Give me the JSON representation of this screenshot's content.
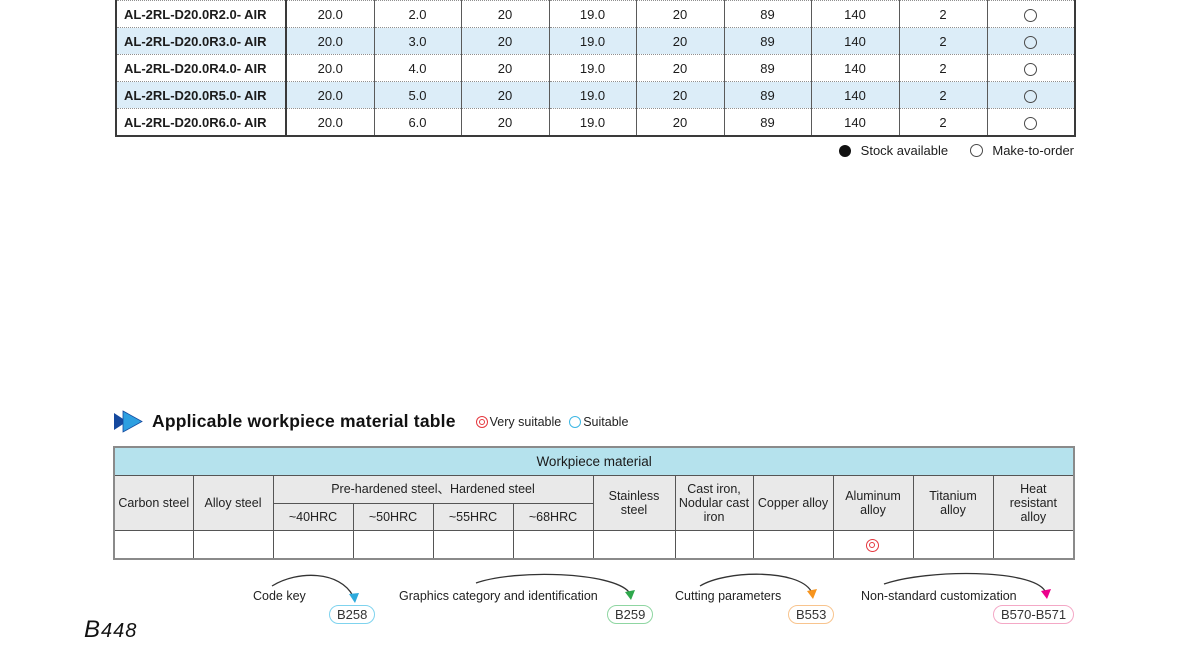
{
  "page_number": "B448",
  "size_table": {
    "rows": [
      {
        "code": "AL-2RL-D20.0R2.0- AIR",
        "values": [
          "20.0",
          "2.0",
          "20",
          "19.0",
          "20",
          "89",
          "140",
          "2"
        ],
        "availability": "make-to-order"
      },
      {
        "code": "AL-2RL-D20.0R3.0- AIR",
        "values": [
          "20.0",
          "3.0",
          "20",
          "19.0",
          "20",
          "89",
          "140",
          "2"
        ],
        "availability": "make-to-order"
      },
      {
        "code": "AL-2RL-D20.0R4.0- AIR",
        "values": [
          "20.0",
          "4.0",
          "20",
          "19.0",
          "20",
          "89",
          "140",
          "2"
        ],
        "availability": "make-to-order"
      },
      {
        "code": "AL-2RL-D20.0R5.0- AIR",
        "values": [
          "20.0",
          "5.0",
          "20",
          "19.0",
          "20",
          "89",
          "140",
          "2"
        ],
        "availability": "make-to-order"
      },
      {
        "code": "AL-2RL-D20.0R6.0- AIR",
        "values": [
          "20.0",
          "6.0",
          "20",
          "19.0",
          "20",
          "89",
          "140",
          "2"
        ],
        "availability": "make-to-order"
      }
    ],
    "availability_legend": {
      "stock_available": "Stock available",
      "make_to_order": "Make-to-order"
    }
  },
  "material_section": {
    "title": "Applicable workpiece material table",
    "suitability_legend": [
      {
        "symbol": "double-circle",
        "label": "Very suitable",
        "color": "#e5383f"
      },
      {
        "symbol": "open-circle",
        "label": "Suitable",
        "color": "#3db7e4"
      }
    ],
    "table": {
      "banner": "Workpiece material",
      "columns": [
        {
          "label": "Carbon steel",
          "group": null
        },
        {
          "label": "Alloy steel",
          "group": null
        },
        {
          "label": "~40HRC",
          "group": "Pre-hardened steel、Hardened steel"
        },
        {
          "label": "~50HRC",
          "group": "Pre-hardened steel、Hardened steel"
        },
        {
          "label": "~55HRC",
          "group": "Pre-hardened steel、Hardened steel"
        },
        {
          "label": "~68HRC",
          "group": "Pre-hardened steel、Hardened steel"
        },
        {
          "label": "Stainless steel",
          "group": null
        },
        {
          "label": "Cast iron, Nodular cast iron",
          "group": null
        },
        {
          "label": "Copper alloy",
          "group": null
        },
        {
          "label": "Aluminum alloy",
          "group": null
        },
        {
          "label": "Titanium alloy",
          "group": null
        },
        {
          "label": "Heat resistant alloy",
          "group": null
        }
      ],
      "ratings": [
        "",
        "",
        "",
        "",
        "",
        "",
        "",
        "",
        "",
        "very-suitable",
        "",
        ""
      ]
    }
  },
  "footer_refs": [
    {
      "label": "Code key",
      "page": "B258",
      "arrow_color": "#2eaadc",
      "box_border": "#7fd3ee"
    },
    {
      "label": "Graphics category and identification",
      "page": "B259",
      "arrow_color": "#2fa84c",
      "box_border": "#8fd6a2"
    },
    {
      "label": "Cutting parameters",
      "page": "B553",
      "arrow_color": "#f7941d",
      "box_border": "#f8c48e"
    },
    {
      "label": "Non-standard customization",
      "page": "B570-B571",
      "arrow_color": "#ec008c",
      "box_border": "#f4a8c6"
    }
  ],
  "brand_colors": {
    "heading_chevron_dark": "#15499e",
    "heading_chevron_light": "#2d9fe0",
    "row_highlight": "#dcedf8",
    "table_banner": "#b5e2ed"
  }
}
